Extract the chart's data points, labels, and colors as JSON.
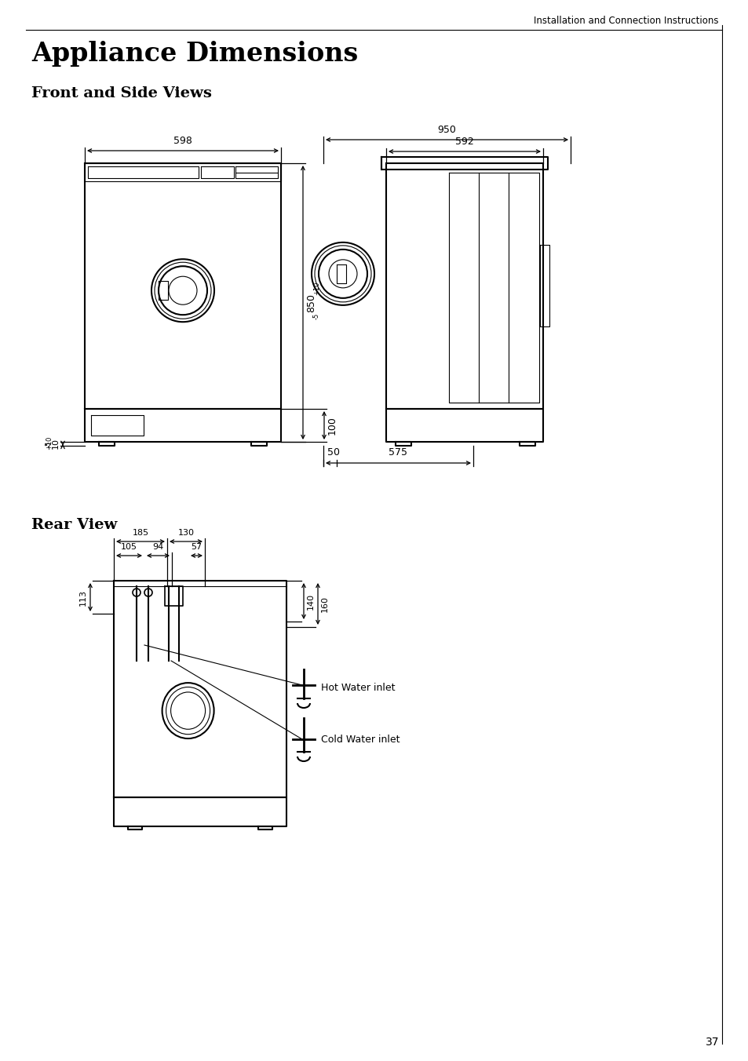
{
  "page_header": "Installation and Connection Instructions",
  "title": "Appliance Dimensions",
  "section1": "Front and Side Views",
  "section2": "Rear View",
  "page_number": "37",
  "bg_color": "#ffffff",
  "text_color": "#000000",
  "dim_598": "598",
  "dim_850": "850",
  "dim_100": "100",
  "dim_10": "10",
  "dim_950": "950",
  "dim_592": "592",
  "dim_575": "575",
  "dim_50": "50",
  "dim_185": "185",
  "dim_130": "130",
  "dim_105": "105",
  "dim_94": "94",
  "dim_57": "57",
  "dim_113": "113",
  "dim_140": "140",
  "dim_160": "160",
  "label_hot": "Hot Water inlet",
  "label_cold": "Cold Water inlet",
  "tol_plus10": "+10",
  "tol_minus5": "-5"
}
